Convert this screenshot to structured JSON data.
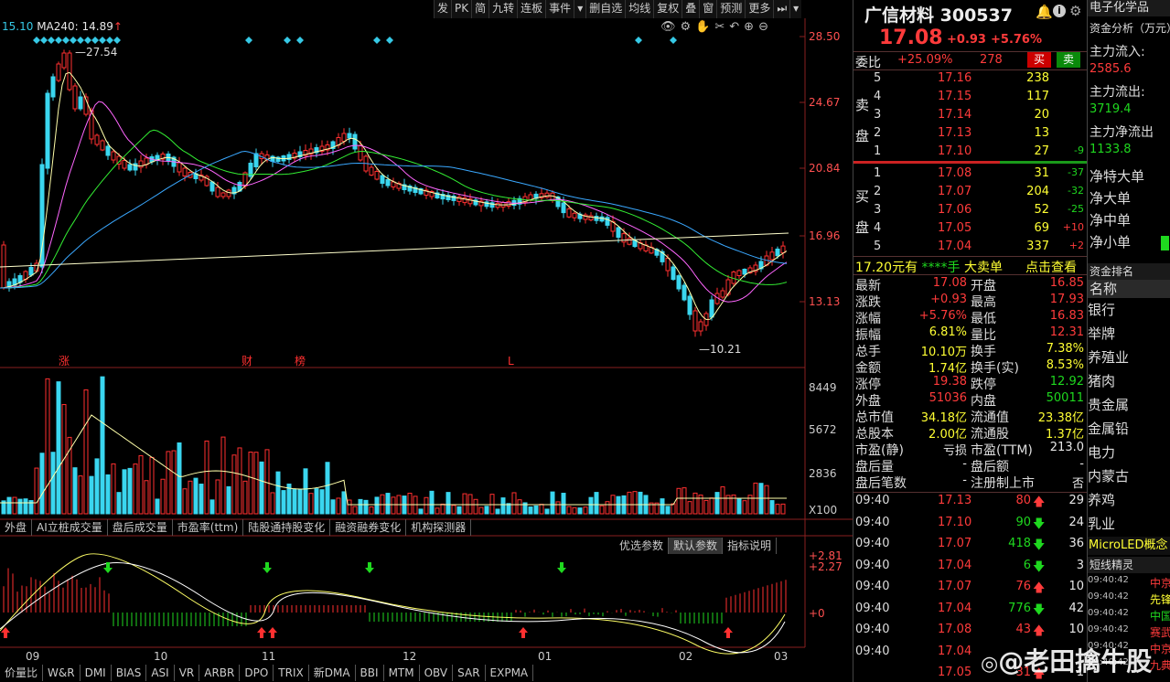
{
  "chart_header": {
    "ma_left": "15.10",
    "ma240": "MA240: 14.89",
    "ma240_arrow": "↑"
  },
  "toolbar": [
    "发",
    "PK",
    "简",
    "九转",
    "连板",
    "事件",
    "▾",
    "删自选",
    "均线",
    "复权",
    "叠",
    "窗",
    "预测",
    "更多",
    "⏭",
    "▾"
  ],
  "price_axis": [
    "28.50",
    "24.67",
    "20.84",
    "16.96",
    "13.13"
  ],
  "volume_axis": [
    "8449",
    "5672",
    "2836",
    "X100"
  ],
  "macd_axis": [
    "+2.81",
    "+2.27",
    "+0"
  ],
  "annotations": {
    "high": "27.54",
    "low": "10.21",
    "events": [
      "涨",
      "财",
      "榜",
      "L"
    ]
  },
  "x_labels": [
    "09",
    "10",
    "11",
    "12",
    "01",
    "02",
    "03"
  ],
  "indicator_tabs": [
    "外盘",
    "AI立桩成交量",
    "盘后成交量",
    "市盈率(ttm)",
    "陆股通持股变化",
    "融资融券变化",
    "机构探测器"
  ],
  "param_tabs": [
    "优选参数",
    "默认参数",
    "指标说明"
  ],
  "bottom_tabs": [
    "价量比",
    "W&R",
    "DMI",
    "BIAS",
    "ASI",
    "VR",
    "ARBR",
    "DPO",
    "TRIX",
    "新DMA",
    "BBI",
    "MTM",
    "OBV",
    "SAR",
    "EXPMA"
  ],
  "quote": {
    "name": "广信材料",
    "code": "300537",
    "price": "17.08",
    "change": "+0.93",
    "pct": "+5.76%",
    "weibi_label": "委比",
    "weibi": "+25.09%",
    "weicha": "278",
    "buy_btn": "买",
    "sell_btn": "卖",
    "sell_label": "卖盘",
    "buy_label": "买盘",
    "sell_orders": [
      {
        "level": "5",
        "price": "17.16",
        "vol": "238",
        "chg": ""
      },
      {
        "level": "4",
        "price": "17.15",
        "vol": "117",
        "chg": ""
      },
      {
        "level": "3",
        "price": "17.14",
        "vol": "20",
        "chg": ""
      },
      {
        "level": "2",
        "price": "17.13",
        "vol": "13",
        "chg": ""
      },
      {
        "level": "1",
        "price": "17.10",
        "vol": "27",
        "chg": "-9"
      }
    ],
    "buy_orders": [
      {
        "level": "1",
        "price": "17.08",
        "vol": "31",
        "chg": "-37"
      },
      {
        "level": "2",
        "price": "17.07",
        "vol": "204",
        "chg": "-32"
      },
      {
        "level": "3",
        "price": "17.06",
        "vol": "52",
        "chg": "-25"
      },
      {
        "level": "4",
        "price": "17.05",
        "vol": "69",
        "chg": "+10"
      },
      {
        "level": "5",
        "price": "17.04",
        "vol": "337",
        "chg": "+2"
      }
    ],
    "bigorder": {
      "price": "17.20元有",
      "amount": "****手",
      "label": "大卖单",
      "link": "点击查看"
    },
    "stats": [
      {
        "l1": "最新",
        "v1": "17.08",
        "c1": "red",
        "l2": "开盘",
        "v2": "16.85",
        "c2": "red"
      },
      {
        "l1": "涨跌",
        "v1": "+0.93",
        "c1": "red",
        "l2": "最高",
        "v2": "17.93",
        "c2": "red"
      },
      {
        "l1": "涨幅",
        "v1": "+5.76%",
        "c1": "red",
        "l2": "最低",
        "v2": "16.83",
        "c2": "red"
      },
      {
        "l1": "振幅",
        "v1": "6.81%",
        "c1": "yellow",
        "l2": "量比",
        "v2": "12.31",
        "c2": "red"
      },
      {
        "l1": "总手",
        "v1": "10.10万",
        "c1": "yellow",
        "l2": "换手",
        "v2": "7.38%",
        "c2": "yellow"
      },
      {
        "l1": "金额",
        "v1": "1.74亿",
        "c1": "yellow",
        "l2": "换手(实)",
        "v2": "8.53%",
        "c2": "yellow"
      },
      {
        "l1": "涨停",
        "v1": "19.38",
        "c1": "red",
        "l2": "跌停",
        "v2": "12.92",
        "c2": "green"
      },
      {
        "l1": "外盘",
        "v1": "51036",
        "c1": "red",
        "l2": "内盘",
        "v2": "50011",
        "c2": "green"
      },
      {
        "l1": "总市值",
        "v1": "34.18亿",
        "c1": "yellow",
        "l2": "流通值",
        "v2": "23.38亿",
        "c2": "yellow"
      },
      {
        "l1": "总股本",
        "v1": "2.00亿",
        "c1": "yellow",
        "l2": "流通股",
        "v2": "1.37亿",
        "c2": "yellow"
      },
      {
        "l1": "市盈(静)",
        "v1": "亏损",
        "c1": "white",
        "l2": "市盈(TTM)",
        "v2": "213.0",
        "c2": "white"
      },
      {
        "l1": "盘后量",
        "v1": "-",
        "c1": "white",
        "l2": "盘后额",
        "v2": "-",
        "c2": "white"
      },
      {
        "l1": "盘后笔数",
        "v1": "-",
        "c1": "white",
        "l2": "注册制上市",
        "v2": "否",
        "c2": "white"
      }
    ],
    "ticks": [
      {
        "time": "09:40",
        "price": "17.13",
        "vol": "80",
        "dir": "up",
        "n": "29"
      },
      {
        "time": "09:40",
        "price": "17.10",
        "vol": "90",
        "dir": "down",
        "n": "24"
      },
      {
        "time": "09:40",
        "price": "17.07",
        "vol": "418",
        "dir": "down",
        "n": "36"
      },
      {
        "time": "09:40",
        "price": "17.04",
        "vol": "6",
        "dir": "down",
        "n": "3"
      },
      {
        "time": "09:40",
        "price": "17.07",
        "vol": "76",
        "dir": "up",
        "n": "10"
      },
      {
        "time": "09:40",
        "price": "17.04",
        "vol": "776",
        "dir": "down",
        "n": "42"
      },
      {
        "time": "09:40",
        "price": "17.08",
        "vol": "43",
        "dir": "up",
        "n": "10"
      },
      {
        "time": "09:40",
        "price": "17.04",
        "vol": "",
        "dir": "",
        "n": ""
      },
      {
        "time": "",
        "price": "17.05",
        "vol": "31",
        "dir": "up",
        "n": "1"
      }
    ]
  },
  "side": {
    "top_label": "电子化学品",
    "fund_title": "资金分析（万元）",
    "items": [
      {
        "label": "主力流入:",
        "value": "2585.6",
        "color": "red"
      },
      {
        "label": "主力流出:",
        "value": "3719.4",
        "color": "green"
      },
      {
        "label": "主力净流出",
        "value": "1133.8",
        "color": "green"
      }
    ],
    "net_labels": [
      "净特大单",
      "净大单",
      "净中单",
      "净小单"
    ],
    "rank_title": "资金排名",
    "rank_header": "名称",
    "rank_items": [
      "银行",
      "举牌",
      "养殖业",
      "猪肉",
      "贵金属",
      "金属铅",
      "电力",
      "内蒙古",
      "养鸡",
      "乳业"
    ],
    "rank_highlight": "MicroLED概念",
    "sprite_title": "短线精灵",
    "sprites": [
      {
        "time": "09:40:42",
        "text": "中京",
        "color": "red"
      },
      {
        "time": "09:40:42",
        "text": "先锋",
        "color": "yellow"
      },
      {
        "time": "09:40:42",
        "text": "中国",
        "color": "green"
      },
      {
        "time": "09:40:42",
        "text": "赛武",
        "color": "red"
      },
      {
        "time": "09:40:42",
        "text": "中京",
        "color": "red"
      },
      {
        "time": "09:40:42",
        "text": "九典",
        "color": "red"
      }
    ]
  },
  "watermark": "@老田擒牛股"
}
